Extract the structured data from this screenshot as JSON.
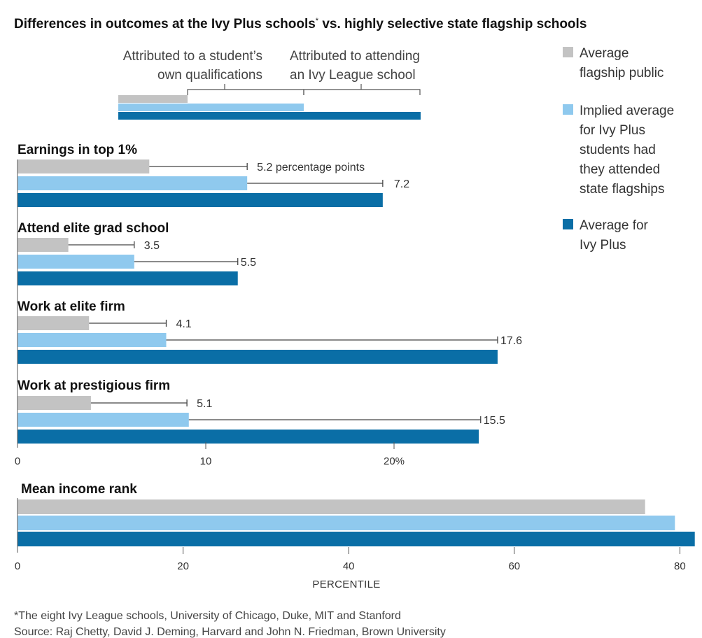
{
  "title": "Differences in outcomes at the Ivy Plus schools",
  "title_asterisk": "*",
  "title_suffix": " vs. highly selective state flagship schools",
  "colors": {
    "flagship": "#c3c3c3",
    "implied": "#8fc9ee",
    "ivy": "#0a6ea6",
    "axis": "#555555"
  },
  "legend": [
    {
      "key": "flagship",
      "lines": [
        "Average",
        "flagship public"
      ]
    },
    {
      "key": "implied",
      "lines": [
        "Implied average",
        "for Ivy Plus",
        "students had",
        "they attended",
        "state flagships"
      ]
    },
    {
      "key": "ivy",
      "lines": [
        "Average for",
        "Ivy Plus"
      ]
    }
  ],
  "key_explainer": {
    "left_lines": [
      "Attributed to a student’s",
      "own qualifications"
    ],
    "right_lines": [
      "Attributed to attending",
      "an Ivy League school"
    ]
  },
  "chart_data": [
    {
      "type": "bar",
      "unit": "percent",
      "categories": [
        "Earnings in top 1%",
        "Attend elite grad school",
        "Work at elite firm",
        "Work at prestigious firm"
      ],
      "series": [
        {
          "name": "Average flagship public",
          "values": [
            7.0,
            2.7,
            3.8,
            3.9
          ]
        },
        {
          "name": "Implied average for Ivy Plus students had they attended state flagships",
          "values": [
            12.2,
            6.2,
            7.9,
            9.1
          ]
        },
        {
          "name": "Average for Ivy Plus",
          "values": [
            19.4,
            11.7,
            25.5,
            24.5
          ]
        }
      ],
      "gap_labels": [
        {
          "flagship_to_implied": "5.2 percentage points",
          "implied_to_ivy": "7.2"
        },
        {
          "flagship_to_implied": "3.5",
          "implied_to_ivy": "5.5"
        },
        {
          "flagship_to_implied": "4.1",
          "implied_to_ivy": "17.6"
        },
        {
          "flagship_to_implied": "5.1",
          "implied_to_ivy": "15.5"
        }
      ],
      "xlim": [
        0,
        26
      ],
      "xticks": [
        "0",
        "10",
        "20%"
      ],
      "xtick_values": [
        0,
        10,
        20
      ]
    },
    {
      "type": "bar",
      "unit": "percentile",
      "categories": [
        "Mean income rank"
      ],
      "series": [
        {
          "name": "Average flagship public",
          "values": [
            75.8
          ]
        },
        {
          "name": "Implied average for Ivy Plus students had they attended state flagships",
          "values": [
            79.4
          ]
        },
        {
          "name": "Average for Ivy Plus",
          "values": [
            81.8
          ]
        }
      ],
      "xlim": [
        0,
        82
      ],
      "xticks": [
        "0",
        "20",
        "40",
        "60",
        "80"
      ],
      "xtick_values": [
        0,
        20,
        40,
        60,
        80
      ],
      "xlabel": "PERCENTILE"
    }
  ],
  "footnote": "*The eight Ivy League schools, University of Chicago, Duke, MIT and Stanford",
  "source": "Source: Raj Chetty, David J. Deming, Harvard and John N. Friedman, Brown University"
}
